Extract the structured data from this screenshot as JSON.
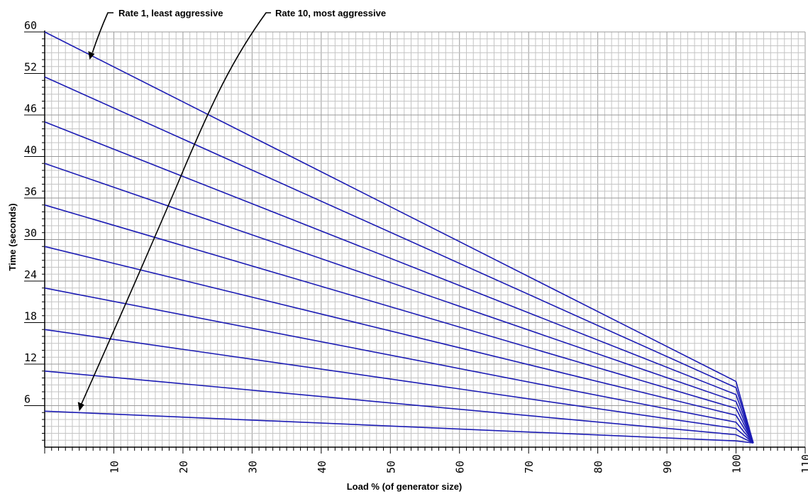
{
  "chart_data": {
    "type": "line",
    "xlabel": "Load % (of generator size)",
    "ylabel": "Time (seconds)",
    "xlim": [
      0,
      110
    ],
    "ylim": [
      0,
      60
    ],
    "x_ticks": [
      "10",
      "20",
      "30",
      "40",
      "50",
      "60",
      "70",
      "80",
      "90",
      "100",
      "110"
    ],
    "y_ticks": [
      "6",
      "12",
      "18",
      "24",
      "30",
      "36",
      "40",
      "46",
      "52",
      "60"
    ],
    "grid": true,
    "line_color": "#1c1cb4",
    "x": [
      0,
      100,
      102.5
    ],
    "series": [
      {
        "values": [
          60,
          9.5,
          0.6
        ]
      },
      {
        "values": [
          53.5,
          8.6,
          0.6
        ]
      },
      {
        "values": [
          47,
          7.6,
          0.6
        ]
      },
      {
        "values": [
          41,
          6.6,
          0.6
        ]
      },
      {
        "values": [
          35,
          5.6,
          0.6
        ]
      },
      {
        "values": [
          29,
          4.6,
          0.6
        ]
      },
      {
        "values": [
          23,
          3.6,
          0.6
        ]
      },
      {
        "values": [
          17,
          2.7,
          0.6
        ]
      },
      {
        "values": [
          11,
          1.8,
          0.6
        ]
      },
      {
        "values": [
          5.2,
          0.9,
          0.6
        ]
      }
    ],
    "annotations": [
      {
        "text": "Rate 1, least aggressive",
        "points_to": {
          "x": 6.5,
          "y": 56
        }
      },
      {
        "text": "Rate 10, most aggressive",
        "points_to": {
          "x": 5,
          "y": 5.2
        }
      }
    ]
  }
}
